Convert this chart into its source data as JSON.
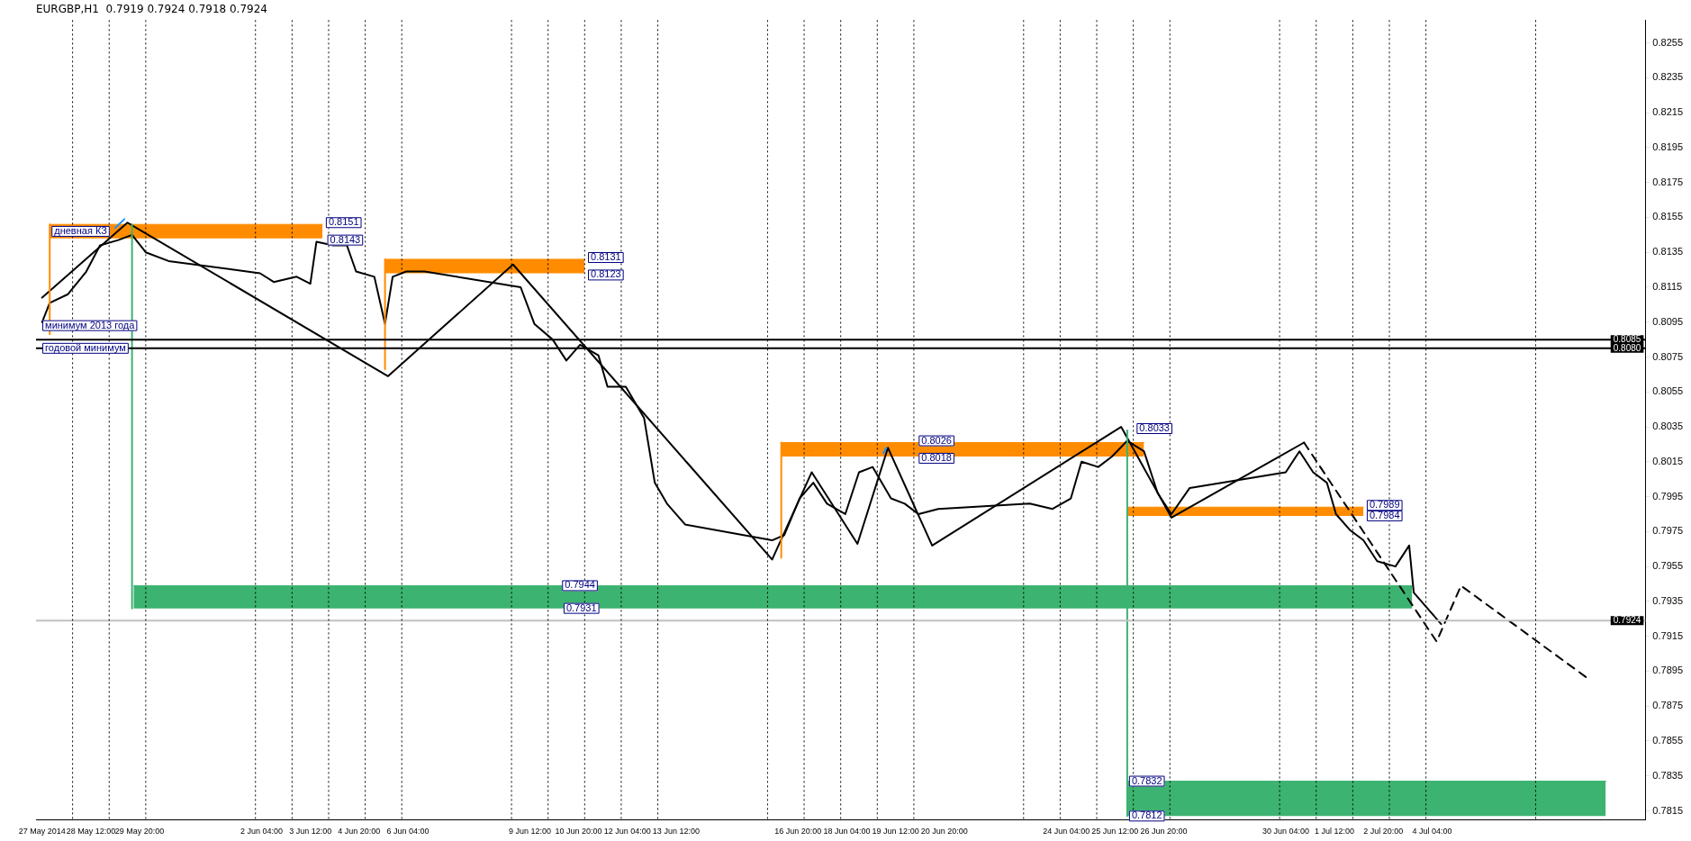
{
  "chart_data": {
    "type": "line",
    "title": "EURGBP,H1  0.7919 0.7924 0.7918 0.7924",
    "xlim": [
      "2014-05-27T00:00",
      "2014-07-10T00:00"
    ],
    "ylim": [
      0.781,
      0.8268
    ],
    "xticks": [
      {
        "value": "2014-05-27T04:00",
        "label": "27 May 2014"
      },
      {
        "value": "2014-05-28T12:00",
        "label": "28 May 12:00"
      },
      {
        "value": "2014-05-29T20:00",
        "label": "29 May 20:00"
      },
      {
        "value": "2014-06-02T04:00",
        "label": "2 Jun 04:00"
      },
      {
        "value": "2014-06-03T12:00",
        "label": "3 Jun 12:00"
      },
      {
        "value": "2014-06-04T20:00",
        "label": "4 Jun 20:00"
      },
      {
        "value": "2014-06-06T04:00",
        "label": "6 Jun 04:00"
      },
      {
        "value": "2014-06-09T12:00",
        "label": "9 Jun 12:00"
      },
      {
        "value": "2014-06-10T20:00",
        "label": "10 Jun 20:00"
      },
      {
        "value": "2014-06-12T04:00",
        "label": "12 Jun 04:00"
      },
      {
        "value": "2014-06-13T12:00",
        "label": "13 Jun 12:00"
      },
      {
        "value": "2014-06-16T20:00",
        "label": "16 Jun 20:00"
      },
      {
        "value": "2014-06-18T04:00",
        "label": "18 Jun 04:00"
      },
      {
        "value": "2014-06-19T12:00",
        "label": "19 Jun 12:00"
      },
      {
        "value": "2014-06-20T20:00",
        "label": "20 Jun 20:00"
      },
      {
        "value": "2014-06-24T04:00",
        "label": "24 Jun 04:00"
      },
      {
        "value": "2014-06-25T12:00",
        "label": "25 Jun 12:00"
      },
      {
        "value": "2014-06-26T20:00",
        "label": "26 Jun 20:00"
      },
      {
        "value": "2014-06-30T04:00",
        "label": "30 Jun 04:00"
      },
      {
        "value": "2014-07-01T12:00",
        "label": "1 Jul 12:00"
      },
      {
        "value": "2014-07-02T20:00",
        "label": "2 Jul 20:00"
      },
      {
        "value": "2014-07-04T04:00",
        "label": "4 Jul 04:00"
      }
    ],
    "yticks": [
      0.7815,
      0.7835,
      0.7855,
      0.7875,
      0.7895,
      0.7915,
      0.7935,
      0.7955,
      0.7975,
      0.7995,
      0.8015,
      0.8035,
      0.8055,
      0.8075,
      0.8095,
      0.8115,
      0.8135,
      0.8155,
      0.8175,
      0.8195,
      0.8215,
      0.8235,
      0.8255
    ],
    "series": [
      {
        "color": "#ff8c00",
        "x": [
          "2014-05-27T09:00",
          "2014-06-03T20:00"
        ],
        "values": [
          0.8151,
          0.8151
        ],
        "lower": [
          0.8143,
          0.8143
        ],
        "upper": [
          0.8151,
          0.8151
        ]
      },
      {
        "color": "#ff8c00",
        "x": [
          "2014-06-05T13:00",
          "2014-06-11T00:00"
        ],
        "values": [
          0.8131,
          0.8131
        ],
        "lower": [
          0.8123,
          0.8123
        ],
        "upper": [
          0.8131,
          0.8131
        ]
      },
      {
        "color": "#ff8c00",
        "x": [
          "2014-06-16T09:00",
          "2014-06-26T07:00"
        ],
        "values": [
          0.8026,
          0.8026
        ],
        "lower": [
          0.8018,
          0.8018
        ],
        "upper": [
          0.8026,
          0.8026
        ]
      },
      {
        "color": "#ff8c00",
        "x": [
          "2014-06-25T20:00",
          "2014-07-02T07:00"
        ],
        "values": [
          0.7989,
          0.7989
        ],
        "lower": [
          0.7984,
          0.7984
        ],
        "upper": [
          0.7989,
          0.7989
        ]
      },
      {
        "color": "#3cb371",
        "x": [
          "2014-05-29T16:00",
          "2014-07-03T15:00"
        ],
        "values": [
          0.7944,
          0.7944
        ],
        "lower": [
          0.7931,
          0.7931
        ],
        "upper": [
          0.7944,
          0.7944
        ]
      },
      {
        "color": "#3cb371",
        "x": [
          "2014-06-25T20:00",
          "2014-07-08T22:00"
        ],
        "values": [
          0.7832,
          0.7832
        ],
        "lower": [
          0.7812,
          0.7812
        ],
        "upper": [
          0.7832,
          0.7832
        ]
      },
      {
        "color": "#ff8c00",
        "x": [
          "2014-05-27T09:00",
          "2014-05-27T09:00"
        ],
        "values": [
          0.8151,
          0.8088
        ]
      },
      {
        "color": "#ff8c00",
        "x": [
          "2014-06-05T13:00",
          "2014-06-05T13:00"
        ],
        "values": [
          0.8131,
          0.8068
        ]
      },
      {
        "color": "#ff8c00",
        "x": [
          "2014-06-16T09:00",
          "2014-06-16T09:00"
        ],
        "values": [
          0.8026,
          0.796
        ]
      },
      {
        "color": "#3cb371",
        "x": [
          "2014-05-29T15:00",
          "2014-05-29T15:00"
        ],
        "values": [
          0.8151,
          0.7931
        ]
      },
      {
        "color": "#3cb371",
        "x": [
          "2014-06-25T20:00",
          "2014-06-25T20:00"
        ],
        "values": [
          0.8033,
          0.7812
        ]
      },
      {
        "color": "#1e90ff",
        "x": [
          "2014-05-29T04:00",
          "2014-05-29T10:00"
        ],
        "values": [
          0.8149,
          0.8154
        ]
      },
      {
        "color": "#1e90ff",
        "x": [
          "2014-06-19T04:00",
          "2014-06-19T06:00"
        ],
        "values": [
          0.802,
          0.8023
        ]
      },
      {
        "color": "#000000",
        "x": [
          "2014-05-27T04:00",
          "2014-05-27T09:00",
          "2014-05-27T21:00",
          "2014-05-28T09:00",
          "2014-05-28T18:00",
          "2014-05-29T06:00",
          "2014-05-29T15:00",
          "2014-05-30T00:00",
          "2014-05-30T15:00",
          "2014-06-02T03:00",
          "2014-06-02T12:00",
          "2014-06-03T03:00",
          "2014-06-03T12:00",
          "2014-06-03T16:00",
          "2014-06-04T03:00",
          "2014-06-04T12:00",
          "2014-06-04T18:00",
          "2014-06-05T06:00",
          "2014-06-05T13:00",
          "2014-06-05T18:00",
          "2014-06-06T03:00",
          "2014-06-06T15:00",
          "2014-06-09T06:00",
          "2014-06-09T15:00",
          "2014-06-10T03:00",
          "2014-06-10T12:00",
          "2014-06-10T21:00",
          "2014-06-11T09:00",
          "2014-06-11T15:00",
          "2014-06-12T03:00",
          "2014-06-12T15:00",
          "2014-06-12T22:00",
          "2014-06-13T06:00",
          "2014-06-13T18:00",
          "2014-06-16T03:00",
          "2014-06-16T11:00",
          "2014-06-16T21:00",
          "2014-06-17T06:00",
          "2014-06-17T15:00",
          "2014-06-18T03:00",
          "2014-06-18T12:00",
          "2014-06-18T21:00",
          "2014-06-19T09:00",
          "2014-06-19T18:00",
          "2014-06-20T03:00",
          "2014-06-20T16:00",
          "2014-06-23T04:00",
          "2014-06-23T19:00",
          "2014-06-24T07:00",
          "2014-06-24T14:00",
          "2014-06-25T01:00",
          "2014-06-25T10:00",
          "2014-06-25T20:00",
          "2014-06-26T07:00",
          "2014-06-26T16:00",
          "2014-06-27T01:00",
          "2014-06-27T13:00",
          "2014-06-30T04:00",
          "2014-06-30T13:00",
          "2014-06-30T22:00",
          "2014-07-01T07:00",
          "2014-07-01T13:00",
          "2014-07-01T22:00",
          "2014-07-02T07:00",
          "2014-07-02T16:00",
          "2014-07-03T04:00",
          "2014-07-03T13:00",
          "2014-07-03T16:00",
          "2014-07-04T01:00",
          "2014-07-04T10:00"
        ],
        "values": [
          0.8095,
          0.8106,
          0.8111,
          0.8124,
          0.8139,
          0.8142,
          0.8145,
          0.8135,
          0.813,
          0.8123,
          0.8118,
          0.8121,
          0.8117,
          0.8141,
          0.8139,
          0.8139,
          0.8124,
          0.8121,
          0.8094,
          0.8121,
          0.8124,
          0.8124,
          0.8115,
          0.8094,
          0.8085,
          0.8073,
          0.8082,
          0.8076,
          0.8058,
          0.8058,
          0.804,
          0.8003,
          0.7991,
          0.7979,
          0.797,
          0.7973,
          0.7994,
          0.8003,
          0.7991,
          0.7985,
          0.8009,
          0.8012,
          0.7994,
          0.7991,
          0.7985,
          0.7988,
          0.7991,
          0.7988,
          0.7994,
          0.8015,
          0.8012,
          0.8018,
          0.8027,
          0.8021,
          0.7997,
          0.7985,
          0.8,
          0.8009,
          0.8021,
          0.8009,
          0.8003,
          0.7985,
          0.7976,
          0.797,
          0.7958,
          0.7955,
          0.7967,
          0.794,
          0.7931,
          0.7922
        ]
      },
      {
        "color": "#000000",
        "x": [
          "2014-05-27T04:00",
          "2014-05-29T12:00",
          "2014-06-05T15:00",
          "2014-06-09T01:00",
          "2014-06-16T03:00",
          "2014-06-17T05:00",
          "2014-06-18T11:00",
          "2014-06-19T07:00",
          "2014-06-20T12:00",
          "2014-06-25T16:00",
          "2014-06-27T01:00",
          "2014-06-30T16:00"
        ],
        "values": [
          0.8109,
          0.8152,
          0.8064,
          0.8128,
          0.7959,
          0.8009,
          0.7968,
          0.8023,
          0.7967,
          0.8035,
          0.7983,
          0.8026
        ]
      },
      {
        "color": "#000000",
        "line_style": "dashed",
        "x": [
          "2014-06-30T16:00",
          "2014-07-04T07:00",
          "2014-07-04T23:00",
          "2014-07-08T10:00"
        ],
        "values": [
          0.8026,
          0.7912,
          0.7944,
          0.7891
        ]
      }
    ],
    "ref_lines": [
      {
        "axis": "y",
        "value": 0.8085,
        "label": "0.8085",
        "color": "#000000"
      },
      {
        "axis": "y",
        "value": 0.808,
        "label": "0.8080",
        "color": "#000000"
      },
      {
        "axis": "y",
        "value": 0.7924,
        "label": "0.7924",
        "color": "#c0c0c0"
      },
      {
        "axis": "x",
        "value": "2014-05-28T00:00",
        "line_style": "dotted",
        "color": "#000000"
      },
      {
        "axis": "x",
        "value": "2014-05-29T00:00",
        "line_style": "dotted",
        "color": "#000000"
      },
      {
        "axis": "x",
        "value": "2014-05-30T00:00",
        "line_style": "dotted",
        "color": "#000000"
      },
      {
        "axis": "x",
        "value": "2014-06-02T00:00",
        "line_style": "dotted",
        "color": "#000000"
      },
      {
        "axis": "x",
        "value": "2014-06-03T00:00",
        "line_style": "dotted",
        "color": "#000000"
      },
      {
        "axis": "x",
        "value": "2014-06-04T00:00",
        "line_style": "dotted",
        "color": "#000000"
      },
      {
        "axis": "x",
        "value": "2014-06-05T00:00",
        "line_style": "dotted",
        "color": "#000000"
      },
      {
        "axis": "x",
        "value": "2014-06-06T00:00",
        "line_style": "dotted",
        "color": "#000000"
      },
      {
        "axis": "x",
        "value": "2014-06-09T00:00",
        "line_style": "dotted",
        "color": "#000000"
      },
      {
        "axis": "x",
        "value": "2014-06-10T00:00",
        "line_style": "dotted",
        "color": "#000000"
      },
      {
        "axis": "x",
        "value": "2014-06-11T00:00",
        "line_style": "dotted",
        "color": "#000000"
      },
      {
        "axis": "x",
        "value": "2014-06-12T00:00",
        "line_style": "dotted",
        "color": "#000000"
      },
      {
        "axis": "x",
        "value": "2014-06-13T00:00",
        "line_style": "dotted",
        "color": "#000000"
      },
      {
        "axis": "x",
        "value": "2014-06-16T00:00",
        "line_style": "dotted",
        "color": "#000000"
      },
      {
        "axis": "x",
        "value": "2014-06-17T00:00",
        "line_style": "dotted",
        "color": "#000000"
      },
      {
        "axis": "x",
        "value": "2014-06-18T00:00",
        "line_style": "dotted",
        "color": "#000000"
      },
      {
        "axis": "x",
        "value": "2014-06-19T00:00",
        "line_style": "dotted",
        "color": "#000000"
      },
      {
        "axis": "x",
        "value": "2014-06-20T00:00",
        "line_style": "dotted",
        "color": "#000000"
      },
      {
        "axis": "x",
        "value": "2014-06-23T00:00",
        "line_style": "dotted",
        "color": "#000000"
      },
      {
        "axis": "x",
        "value": "2014-06-24T00:00",
        "line_style": "dotted",
        "color": "#000000"
      },
      {
        "axis": "x",
        "value": "2014-06-25T00:00",
        "line_style": "dotted",
        "color": "#000000"
      },
      {
        "axis": "x",
        "value": "2014-06-26T00:00",
        "line_style": "dotted",
        "color": "#000000"
      },
      {
        "axis": "x",
        "value": "2014-06-27T00:00",
        "line_style": "dotted",
        "color": "#000000"
      },
      {
        "axis": "x",
        "value": "2014-06-30T00:00",
        "line_style": "dotted",
        "color": "#000000"
      },
      {
        "axis": "x",
        "value": "2014-07-01T00:00",
        "line_style": "dotted",
        "color": "#000000"
      },
      {
        "axis": "x",
        "value": "2014-07-02T00:00",
        "line_style": "dotted",
        "color": "#000000"
      },
      {
        "axis": "x",
        "value": "2014-07-03T00:00",
        "line_style": "dotted",
        "color": "#000000"
      },
      {
        "axis": "x",
        "value": "2014-07-04T00:00",
        "line_style": "dotted",
        "color": "#000000"
      },
      {
        "axis": "x",
        "value": "2014-07-07T00:00",
        "line_style": "dotted",
        "color": "#000000"
      }
    ],
    "annotations": [
      {
        "text": "минимум 2013 года",
        "x": "2014-05-27T03:00",
        "y": 0.8093
      },
      {
        "text": "годовой минимум",
        "x": "2014-05-27T03:00",
        "y": 0.808
      },
      {
        "text": "дневная КЗ",
        "x": "2014-05-27T09:00",
        "y": 0.8147
      },
      {
        "text": "0.8151",
        "x": "2014-06-03T21:00",
        "y": 0.8152
      },
      {
        "text": "0.8143",
        "x": "2014-06-03T22:00",
        "y": 0.8142
      },
      {
        "text": "0.8131",
        "x": "2014-06-11T01:00",
        "y": 0.8132
      },
      {
        "text": "0.8123",
        "x": "2014-06-11T01:00",
        "y": 0.8122
      },
      {
        "text": "0.8026",
        "x": "2014-06-20T02:00",
        "y": 0.8027
      },
      {
        "text": "0.8018",
        "x": "2014-06-20T02:00",
        "y": 0.8017
      },
      {
        "text": "0.8033",
        "x": "2014-06-26T01:00",
        "y": 0.8034
      },
      {
        "text": "0.7989",
        "x": "2014-07-02T08:00",
        "y": 0.799
      },
      {
        "text": "0.7984",
        "x": "2014-07-02T08:00",
        "y": 0.7984
      },
      {
        "text": "0.7944",
        "x": "2014-06-10T08:00",
        "y": 0.7944
      },
      {
        "text": "0.7931",
        "x": "2014-06-10T09:00",
        "y": 0.7931
      },
      {
        "text": "0.7832",
        "x": "2014-06-25T20:00",
        "y": 0.7832
      },
      {
        "text": "0.7812",
        "x": "2014-06-25T20:00",
        "y": 0.7812
      }
    ]
  }
}
